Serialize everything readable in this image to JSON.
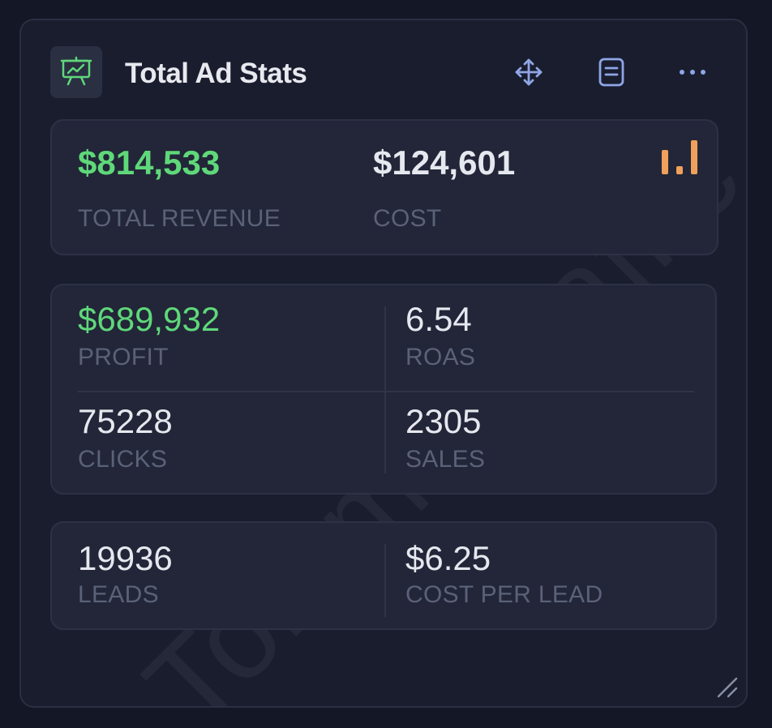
{
  "watermark": "TommieTraffic",
  "widget": {
    "title": "Total Ad Stats",
    "icons": {
      "app": "presentation-chart-icon",
      "move": "move-arrows-icon",
      "notes": "document-icon",
      "more": "more-dots-icon",
      "chart": "bar-chart-icon",
      "resize": "resize-handle-icon"
    }
  },
  "colors": {
    "accent_green": "#5fd87a",
    "accent_orange": "#f0a05a",
    "icon_blue": "#8fa6e6"
  },
  "summary": {
    "revenue_value": "$814,533",
    "revenue_label": "TOTAL REVENUE",
    "cost_value": "$124,601",
    "cost_label": "COST"
  },
  "metrics": {
    "profit_value": "$689,932",
    "profit_label": "PROFIT",
    "roas_value": "6.54",
    "roas_label": "ROAS",
    "clicks_value": "75228",
    "clicks_label": "CLICKS",
    "sales_value": "2305",
    "sales_label": "SALES"
  },
  "leads": {
    "leads_value": "19936",
    "leads_label": "LEADS",
    "cpl_value": "$6.25",
    "cpl_label": "COST PER LEAD"
  }
}
